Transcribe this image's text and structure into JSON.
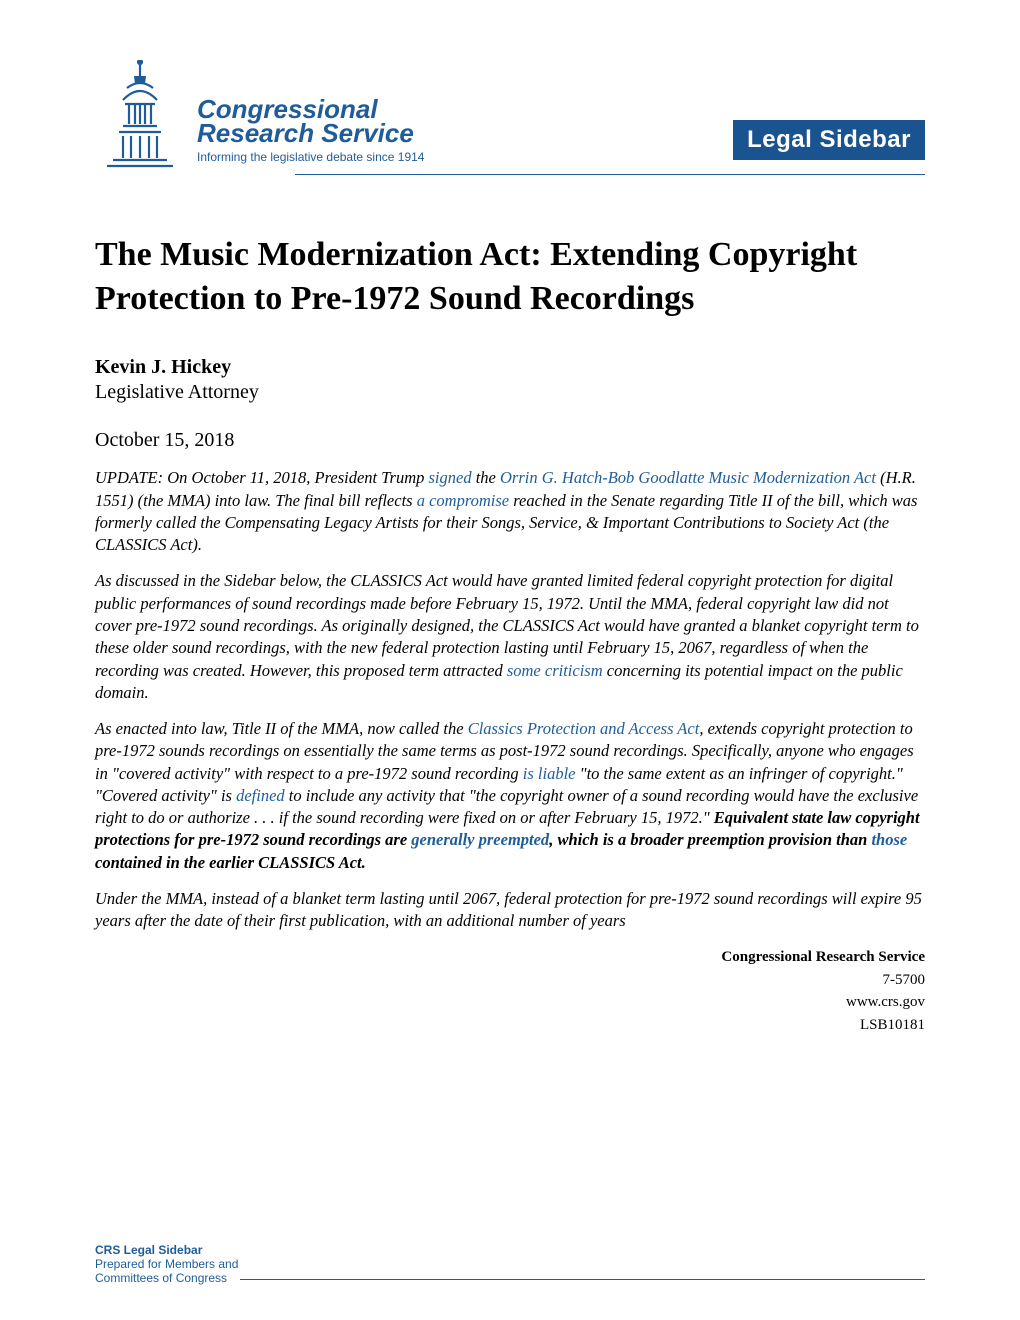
{
  "logo": {
    "line1": "Congressional",
    "line2": "Research Service",
    "tagline": "Informing the legislative debate since 1914",
    "color": "#1f5c99"
  },
  "badge": {
    "text": "Legal Sidebar",
    "bg": "#1a5490",
    "fg": "#ffffff"
  },
  "title": "The Music Modernization Act: Extending Copyright Protection to Pre-1972 Sound Recordings",
  "author": {
    "name": "Kevin J. Hickey",
    "role": "Legislative Attorney"
  },
  "date": "October 15, 2018",
  "paragraphs": [
    {
      "runs": [
        {
          "t": "UPDATE: On October 11, 2018, President Trump "
        },
        {
          "t": "signed",
          "link": true
        },
        {
          "t": " the "
        },
        {
          "t": "Orrin G. Hatch-Bob Goodlatte Music Modernization Act",
          "link": true
        },
        {
          "t": " (H.R. 1551) (the MMA) into law. The final bill reflects "
        },
        {
          "t": "a compromise",
          "link": true
        },
        {
          "t": " reached in the Senate regarding Title II of the bill, which was formerly called the Compensating Legacy Artists for their Songs, Service, & Important Contributions to Society Act (the CLASSICS Act)."
        }
      ]
    },
    {
      "runs": [
        {
          "t": "As discussed in the Sidebar below, the CLASSICS Act would have granted limited federal copyright protection for digital public performances of sound recordings made before February 15, 1972. Until the MMA, federal copyright law did not cover pre-1972 sound recordings. As originally designed, the CLASSICS Act would have granted a blanket copyright term to these older sound recordings, with the new federal protection lasting until February 15, 2067, regardless of when the recording was created. However, this proposed term attracted "
        },
        {
          "t": "some criticism",
          "link": true
        },
        {
          "t": " concerning its potential impact on the public domain."
        }
      ]
    },
    {
      "runs": [
        {
          "t": "As enacted into law, Title II of the MMA, now called the "
        },
        {
          "t": "Classics Protection and Access Act",
          "link": true
        },
        {
          "t": ", extends copyright protection to pre-1972 sounds recordings on essentially the same terms as post-1972 sound recordings. Specifically, anyone who engages in \"covered activity\" with respect to a pre-1972 sound recording "
        },
        {
          "t": "is liable",
          "link": true
        },
        {
          "t": " \"to the same extent as an infringer of copyright.\" \"Covered activity\" is "
        },
        {
          "t": "defined",
          "link": true
        },
        {
          "t": " to include any activity that \"the copyright owner of a sound recording would have the exclusive right to do or authorize . . . if the sound recording were fixed on or after February 15, 1972.\" "
        },
        {
          "t": "Equivalent state law copyright protections for pre-1972 sound recordings are ",
          "bold": true
        },
        {
          "t": "generally preempted",
          "link": true,
          "bold": true
        },
        {
          "t": ", which is a broader preemption provision than ",
          "bold": true
        },
        {
          "t": "those",
          "link": true,
          "bold": true
        },
        {
          "t": " contained in the earlier CLASSICS Act.",
          "bold": true
        }
      ]
    },
    {
      "runs": [
        {
          "t": "Under the MMA, instead of a blanket term lasting until 2067, federal protection for pre-1972 sound recordings will expire 95 years after the date of their first publication, with an additional number of years"
        }
      ]
    }
  ],
  "footer_right": {
    "org": "Congressional Research Service",
    "phone": "7-5700",
    "url": "www.crs.gov",
    "code": "LSB10181"
  },
  "footer_left": {
    "title": "CRS Legal Sidebar",
    "line1": "Prepared for Members and",
    "line2": "Committees of Congress"
  },
  "colors": {
    "brand": "#1f5c99",
    "text": "#000000",
    "bg": "#ffffff"
  },
  "typography": {
    "title_size_pt": 26,
    "body_size_pt": 12,
    "body_italic": true
  }
}
